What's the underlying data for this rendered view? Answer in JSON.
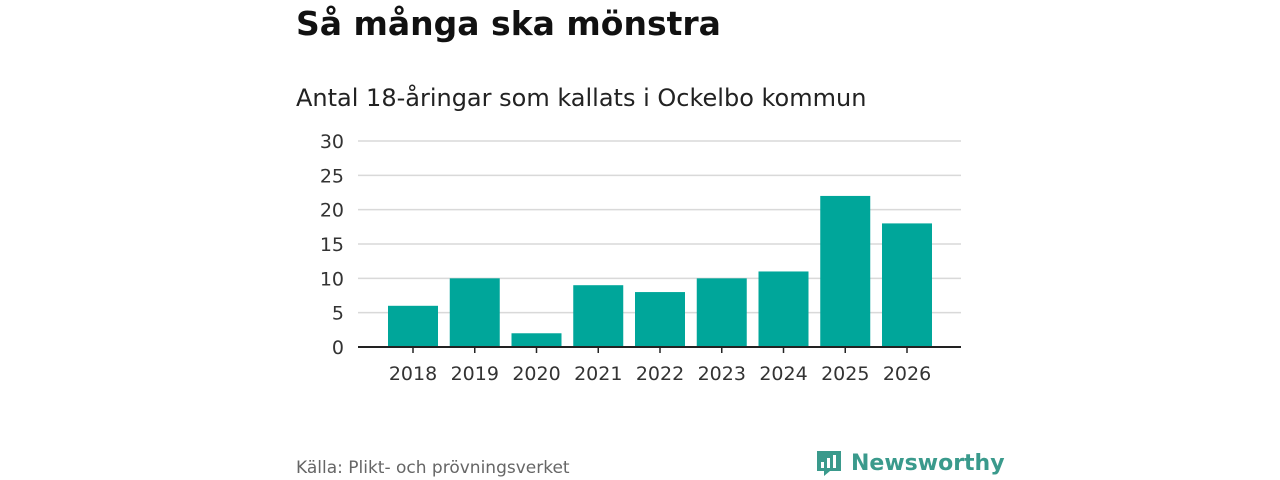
{
  "header": {
    "title": "Så många ska mönstra",
    "subtitle": "Antal 18-åringar som kallats i Ockelbo kommun"
  },
  "footer": {
    "source": "Källa: Plikt- och prövningsverket",
    "brand": "Newsworthy"
  },
  "colors": {
    "bar": "#00a69a",
    "brand": "#3a9a8c"
  },
  "chart_data": {
    "type": "bar",
    "categories": [
      "2018",
      "2019",
      "2020",
      "2021",
      "2022",
      "2023",
      "2024",
      "2025",
      "2026"
    ],
    "values": [
      6,
      10,
      2,
      9,
      8,
      10,
      11,
      22,
      18
    ],
    "yticks": [
      0,
      5,
      10,
      15,
      20,
      25,
      30
    ],
    "ylim": [
      0,
      30
    ],
    "grid": true
  }
}
